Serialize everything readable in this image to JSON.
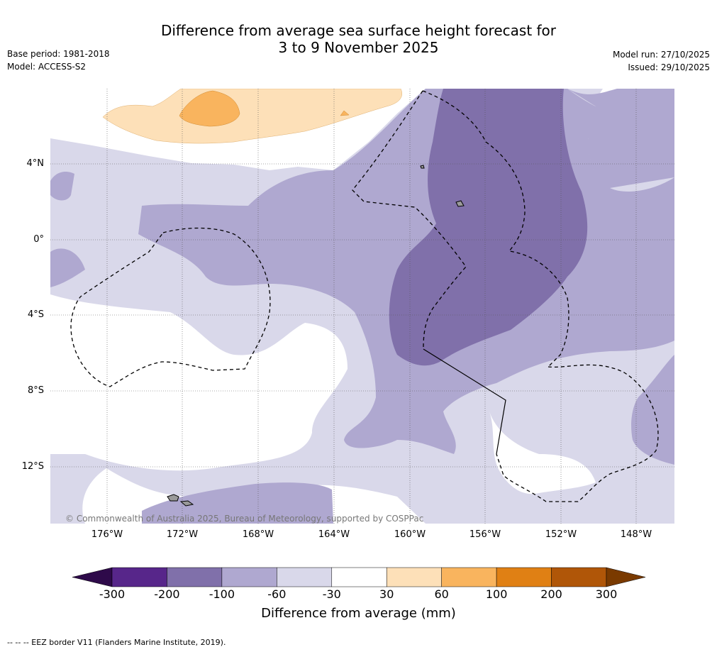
{
  "header": {
    "title_line1": "Difference from average sea surface height forecast for",
    "title_line2": "3 to 9 November 2025",
    "base_period": "Base period: 1981-2018",
    "model": "Model: ACCESS-S2",
    "model_run": "Model run: 27/10/2025",
    "issued": "Issued: 29/10/2025"
  },
  "map": {
    "lat_labels": [
      "4°N",
      "0°",
      "4°S",
      "8°S",
      "12°S"
    ],
    "lon_labels": [
      "176°W",
      "172°W",
      "168°W",
      "164°W",
      "160°W",
      "156°W",
      "152°W",
      "148°W"
    ],
    "copyright": "© Commonwealth of Australia 2025, Bureau of Meteorology, supported by COSPPac"
  },
  "colorbar": {
    "title": "Difference from average (mm)",
    "ticks": [
      "-300",
      "-200",
      "-100",
      "-60",
      "-30",
      "30",
      "60",
      "100",
      "200",
      "300"
    ],
    "colors": [
      "#2e0a4a",
      "#57268a",
      "#8070aa",
      "#afa8d0",
      "#d9d8ea",
      "#ffffff",
      "#fde0b8",
      "#f9b45e",
      "#e08014",
      "#b05608",
      "#7a3a00"
    ]
  },
  "footer": {
    "legend": "--  --  -- EEZ border V11 (Flanders Marine Institute, 2019)."
  }
}
